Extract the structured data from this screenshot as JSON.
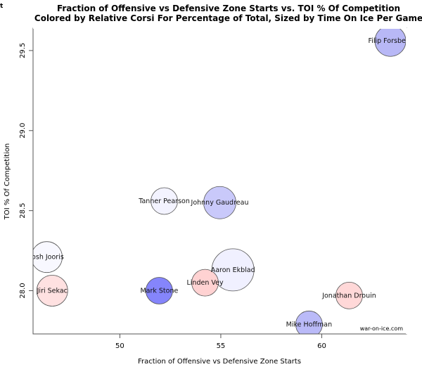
{
  "stray_text": "t",
  "chart_data": {
    "type": "scatter",
    "title": "Fraction of Offensive vs Defensive Zone Starts vs. TOI % Of Competition",
    "subtitle": "Colored by Relative Corsi For Percentage of Total, Sized by Time On Ice Per Game",
    "xlabel": "Fraction of Offensive vs Defensive Zone Starts",
    "ylabel": "TOI % Of Competition",
    "xlim": [
      45.7,
      64.2
    ],
    "ylim": [
      27.73,
      29.64
    ],
    "xticks": [
      50,
      55,
      60
    ],
    "xtick_labels": [
      "50",
      "55",
      "60"
    ],
    "yticks": [
      28.0,
      28.5,
      29.0,
      29.5
    ],
    "ytick_labels": [
      "28.0",
      "28.5",
      "29.0",
      "29.5"
    ],
    "grid": false,
    "watermark": "war-on-ice.com",
    "points": [
      {
        "label": "Filip Forsberg",
        "x": 63.4,
        "y": 29.56,
        "size": 22,
        "color": "#b8b8f6"
      },
      {
        "label": "Tanner Pearson",
        "x": 52.2,
        "y": 28.56,
        "size": 19,
        "color": "#f3f3ff"
      },
      {
        "label": "Johnny Gaudreau",
        "x": 54.95,
        "y": 28.55,
        "size": 23,
        "color": "#c9c9fa"
      },
      {
        "label": "Josh Jooris",
        "x": 46.38,
        "y": 28.21,
        "size": 22,
        "color": "#f8f8ff"
      },
      {
        "label": "Jiri Sekac",
        "x": 46.65,
        "y": 28.0,
        "size": 22,
        "color": "#ffe1e1"
      },
      {
        "label": "Mark Stone",
        "x": 51.95,
        "y": 28.0,
        "size": 19,
        "color": "#8585fb"
      },
      {
        "label": "Aaron Ekblad",
        "x": 55.6,
        "y": 28.13,
        "size": 30,
        "color": "#f0f0ff"
      },
      {
        "label": "Linden Vey",
        "x": 54.22,
        "y": 28.05,
        "size": 19,
        "color": "#ffd2d2"
      },
      {
        "label": "Jonathan Drouin",
        "x": 61.36,
        "y": 27.97,
        "size": 19,
        "color": "#ffd8d8"
      },
      {
        "label": "Mike Hoffman",
        "x": 59.37,
        "y": 27.79,
        "size": 19,
        "color": "#babaf8"
      }
    ]
  }
}
